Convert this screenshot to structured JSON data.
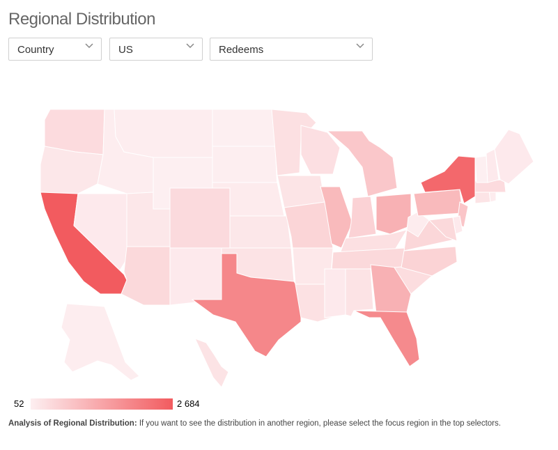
{
  "header": {
    "title": "Regional Distribution"
  },
  "selectors": [
    {
      "value": "Country"
    },
    {
      "value": "US"
    },
    {
      "value": "Redeems"
    }
  ],
  "icons": {
    "dropdown": "chevron-down-icon"
  },
  "chart_data": {
    "type": "choropleth-map",
    "region": "US",
    "metric": "Redeems",
    "scale": {
      "min": 52,
      "max": 2684,
      "min_label": "52",
      "max_label": "2 684",
      "color_low": "#fdeff1",
      "color_high": "#f25b5f"
    },
    "states": [
      {
        "code": "WA",
        "value": 400
      },
      {
        "code": "OR",
        "value": 200
      },
      {
        "code": "CA",
        "value": 2684
      },
      {
        "code": "NV",
        "value": 150
      },
      {
        "code": "ID",
        "value": 80
      },
      {
        "code": "MT",
        "value": 90
      },
      {
        "code": "WY",
        "value": 52
      },
      {
        "code": "UT",
        "value": 200
      },
      {
        "code": "AZ",
        "value": 450
      },
      {
        "code": "CO",
        "value": 420
      },
      {
        "code": "NM",
        "value": 150
      },
      {
        "code": "ND",
        "value": 60
      },
      {
        "code": "SD",
        "value": 70
      },
      {
        "code": "NE",
        "value": 130
      },
      {
        "code": "KS",
        "value": 190
      },
      {
        "code": "OK",
        "value": 260
      },
      {
        "code": "TX",
        "value": 1900
      },
      {
        "code": "MN",
        "value": 320
      },
      {
        "code": "IA",
        "value": 250
      },
      {
        "code": "MO",
        "value": 520
      },
      {
        "code": "AR",
        "value": 170
      },
      {
        "code": "LA",
        "value": 300
      },
      {
        "code": "WI",
        "value": 330
      },
      {
        "code": "IL",
        "value": 1000
      },
      {
        "code": "MI",
        "value": 760
      },
      {
        "code": "IN",
        "value": 560
      },
      {
        "code": "OH",
        "value": 1150
      },
      {
        "code": "KY",
        "value": 320
      },
      {
        "code": "TN",
        "value": 450
      },
      {
        "code": "MS",
        "value": 150
      },
      {
        "code": "AL",
        "value": 270
      },
      {
        "code": "GA",
        "value": 1150
      },
      {
        "code": "FL",
        "value": 1850
      },
      {
        "code": "SC",
        "value": 380
      },
      {
        "code": "NC",
        "value": 550
      },
      {
        "code": "VA",
        "value": 480
      },
      {
        "code": "WV",
        "value": 100
      },
      {
        "code": "PA",
        "value": 1000
      },
      {
        "code": "NY",
        "value": 2450
      },
      {
        "code": "NJ",
        "value": 800
      },
      {
        "code": "DE",
        "value": 150
      },
      {
        "code": "MD",
        "value": 440
      },
      {
        "code": "CT",
        "value": 250
      },
      {
        "code": "RI",
        "value": 110
      },
      {
        "code": "MA",
        "value": 400
      },
      {
        "code": "VT",
        "value": 60
      },
      {
        "code": "NH",
        "value": 150
      },
      {
        "code": "ME",
        "value": 150
      },
      {
        "code": "AK",
        "value": 90
      },
      {
        "code": "HI",
        "value": 260
      }
    ]
  },
  "footnote": {
    "label": "Analysis of Regional Distribution:",
    "text": " If you want to see the distribution in another region, please select the focus region in the top selectors."
  }
}
